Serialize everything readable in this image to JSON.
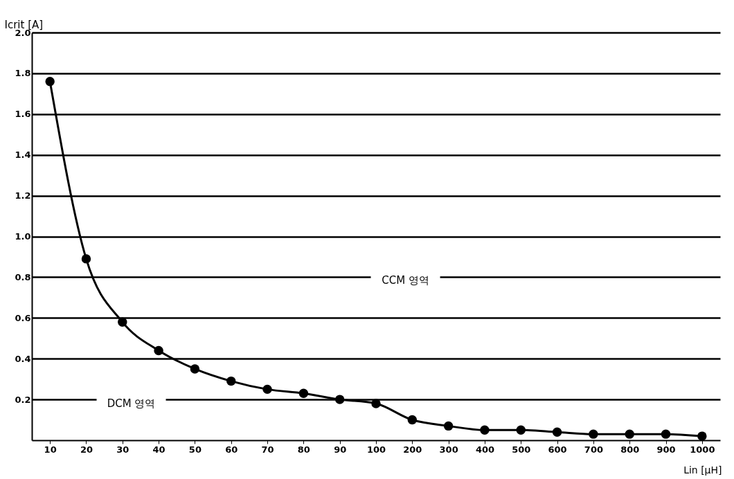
{
  "chart_data": {
    "type": "line",
    "xlabel": "Lin [μH]",
    "ylabel": "Icrit [A]",
    "categories": [
      "10",
      "20",
      "30",
      "40",
      "50",
      "60",
      "70",
      "80",
      "90",
      "100",
      "200",
      "300",
      "400",
      "500",
      "600",
      "700",
      "800",
      "900",
      "1000"
    ],
    "series": [
      {
        "color": "#000000",
        "values": [
          1.76,
          0.89,
          0.58,
          0.44,
          0.35,
          0.29,
          0.25,
          0.23,
          0.2,
          0.18,
          0.1,
          0.07,
          0.05,
          0.05,
          0.04,
          0.03,
          0.03,
          0.03,
          0.02
        ]
      }
    ],
    "ylim": [
      0,
      2.0
    ],
    "yticks": [
      0.2,
      0.4,
      0.6,
      0.8,
      {
        "value": 1,
        "label": "1.0"
      },
      1.2,
      1.4,
      1.6,
      1.8,
      {
        "value": 2,
        "label": "2.0"
      }
    ],
    "grid": "y",
    "marker": "circle",
    "line_style": "solid",
    "annotations": [
      "CCM 영역",
      "DCM 영역"
    ]
  }
}
